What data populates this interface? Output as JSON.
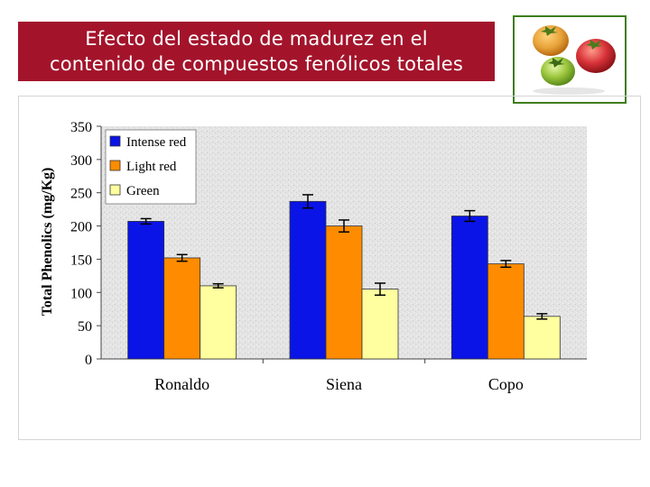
{
  "slide": {
    "title": "Efecto del estado de madurez en el\ncontenido de compuestos fenólicos totales",
    "colors": {
      "title_bg": "#a3142b",
      "title_text": "#ffffff",
      "photo_border": "#3f7d1e"
    }
  },
  "photo": {
    "subject": "tomatoes-at-three-ripeness-stages",
    "fruit_colors": [
      "#e8a33a",
      "#d9343a",
      "#9cc63d"
    ]
  },
  "chart_data": {
    "type": "bar",
    "title": "",
    "xlabel": "",
    "ylabel": "Total Phenolics (mg/Kg)",
    "ylim": [
      0,
      350
    ],
    "yticks": [
      0,
      50,
      100,
      150,
      200,
      250,
      300,
      350
    ],
    "categories": [
      "Ronaldo",
      "Siena",
      "Copo"
    ],
    "series": [
      {
        "name": "Intense red",
        "color": "#0a14e6",
        "values": [
          207,
          237,
          215
        ],
        "errors": [
          4,
          10,
          8
        ]
      },
      {
        "name": "Light red",
        "color": "#ff8c00",
        "values": [
          152,
          200,
          143
        ],
        "errors": [
          5,
          9,
          5
        ]
      },
      {
        "name": "Green",
        "color": "#ffffa0",
        "values": [
          110,
          105,
          64
        ],
        "errors": [
          3,
          9,
          4
        ]
      }
    ],
    "legend_position": "top-left",
    "grid": false,
    "plot_background": "speckled-gray"
  }
}
